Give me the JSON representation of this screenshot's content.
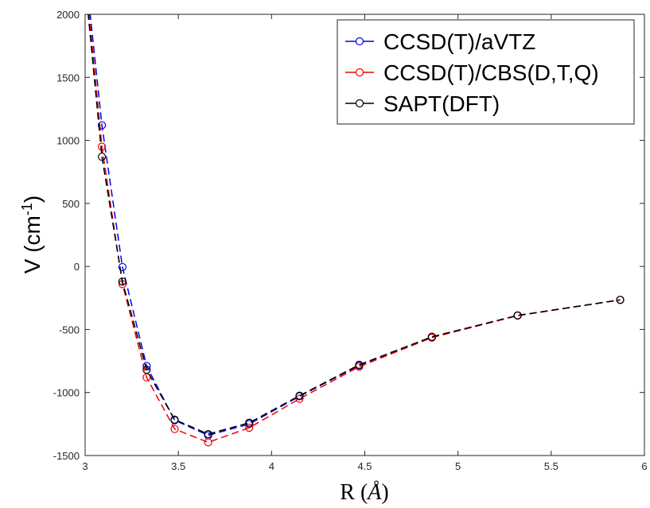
{
  "chart_data": {
    "type": "line",
    "xlabel_prefix": "R (",
    "xlabel_unit": "Å",
    "xlabel_suffix": ")",
    "ylabel_main": "V (cm",
    "ylabel_sup": "-1",
    "ylabel_end": ")",
    "xlim": [
      3,
      6
    ],
    "ylim": [
      -1500,
      2000
    ],
    "xticks": [
      3,
      3.5,
      4,
      4.5,
      5,
      5.5,
      6
    ],
    "yticks": [
      -1500,
      -1000,
      -500,
      0,
      500,
      1000,
      1500,
      2000
    ],
    "xtick_labels": [
      "3",
      "3.5",
      "4",
      "4.5",
      "5",
      "5.5",
      "6"
    ],
    "ytick_labels": [
      "-1500",
      "-1000",
      "-500",
      "0",
      "500",
      "1000",
      "1500",
      "2000"
    ],
    "grid": false,
    "legend_position": "top-right",
    "series": [
      {
        "name": "CCSD(T)/aVTZ",
        "color": "#0000ee",
        "x": [
          3.09,
          3.2,
          3.33,
          3.48,
          3.66,
          3.88,
          4.15,
          4.47,
          4.86,
          5.32,
          5.87
        ],
        "y": [
          1120,
          -5,
          -790,
          -1220,
          -1340,
          -1250,
          -1030,
          -785,
          -560,
          -390,
          -265
        ],
        "start_point": [
          3.02,
          2100
        ]
      },
      {
        "name": "CCSD(T)/CBS(D,T,Q)",
        "color": "#ee0000",
        "x": [
          3.09,
          3.2,
          3.33,
          3.48,
          3.66,
          3.88,
          4.15,
          4.47,
          4.86,
          5.32,
          5.87
        ],
        "y": [
          950,
          -140,
          -880,
          -1290,
          -1395,
          -1280,
          -1050,
          -795,
          -565,
          -390,
          -265
        ],
        "start_point": [
          3.015,
          2100
        ]
      },
      {
        "name": "SAPT(DFT)",
        "color": "#000000",
        "x": [
          3.09,
          3.2,
          3.33,
          3.48,
          3.66,
          3.88,
          4.15,
          4.47,
          4.86,
          5.32,
          5.87
        ],
        "y": [
          870,
          -120,
          -820,
          -1215,
          -1330,
          -1240,
          -1025,
          -780,
          -558,
          -388,
          -265
        ],
        "start_point": [
          3.01,
          2100
        ]
      }
    ]
  }
}
